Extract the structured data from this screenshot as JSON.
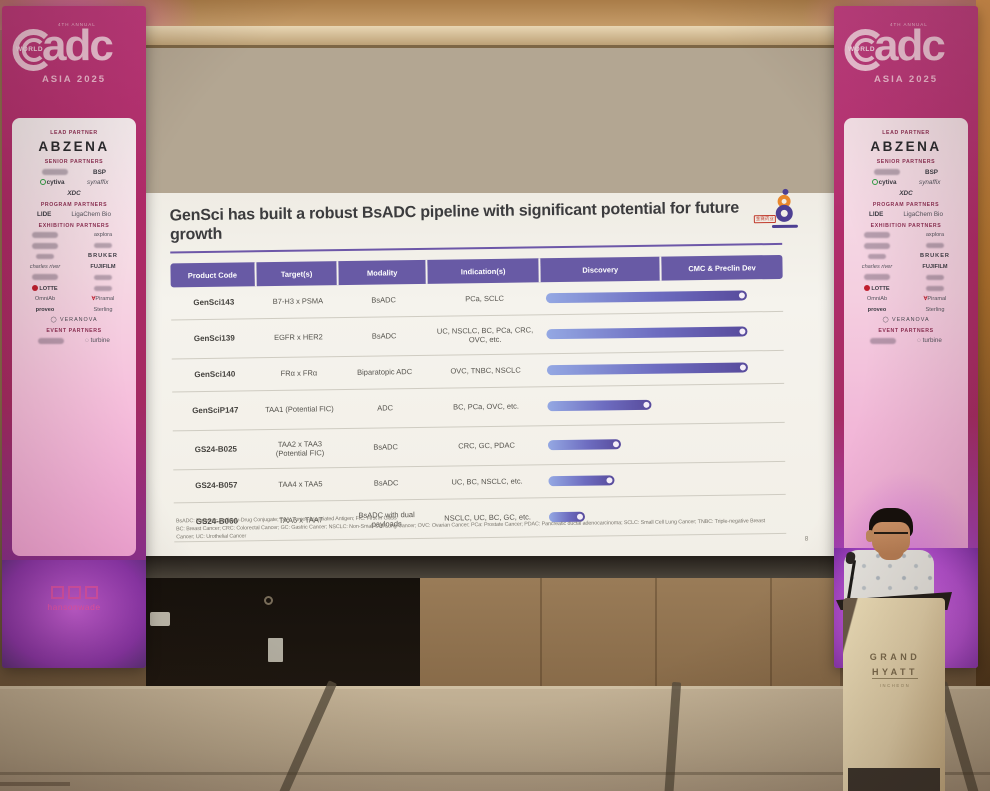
{
  "slide": {
    "title": "GenSci has built a robust BsADC pipeline with significant potential for future growth",
    "logo_cjk": "金赛药业",
    "page_number": "8",
    "table": {
      "headers": [
        "Product Code",
        "Target(s)",
        "Modality",
        "Indication(s)",
        "Discovery",
        "CMC & Preclin Dev"
      ],
      "rows": [
        {
          "product": "GenSci143",
          "target": "B7-H3 x PSMA",
          "modality": "BsADC",
          "indication": "PCa, SCLC",
          "progress_pct": 85
        },
        {
          "product": "GenSci139",
          "target": "EGFR x HER2",
          "modality": "BsADC",
          "indication": "UC, NSCLC, BC, PCa, CRC, OVC, etc.",
          "progress_pct": 85
        },
        {
          "product": "GenSci140",
          "target": "FRα x FRα",
          "modality": "Biparatopic ADC",
          "indication": "OVC, TNBC, NSCLC",
          "progress_pct": 85
        },
        {
          "product": "GenSciP147",
          "target": "TAA1 (Potential FIC)",
          "modality": "ADC",
          "indication": "BC, PCa, OVC, etc.",
          "progress_pct": 44
        },
        {
          "product": "GS24-B025",
          "target": "TAA2 x TAA3 (Potential FIC)",
          "modality": "BsADC",
          "indication": "CRC, GC, PDAC",
          "progress_pct": 31
        },
        {
          "product": "GS24-B057",
          "target": "TAA4 x TAA5",
          "modality": "BsADC",
          "indication": "UC, BC, NSCLC, etc.",
          "progress_pct": 28
        },
        {
          "product": "GS24-B060",
          "target": "TAA6 x TAA7",
          "modality": "BsADC with dual payloads",
          "indication": "NSCLC, UC, BC, GC, etc.",
          "progress_pct": 15
        }
      ]
    },
    "footnote_line1": "BsADC: Bispecific Antibody-Drug Conjugate; TAA: Tumor-Associated Antigen; FIC: First in Class",
    "footnote_line2": "BC: Breast Cancer; CRC: Colorectal Cancer; GC: Gastric Cancer; NSCLC: Non-Small Cell Lung Cancer; OVC: Ovarian Cancer; PCa: Prostate Cancer; PDAC: Pancreatic ductal adenocarcinoma; SCLC: Small Cell Lung Cancer; TNBC: Triple-negative Breast Cancer; UC: Urothelial Cancer"
  },
  "banner": {
    "annual": "4TH ANNUAL",
    "brand": "adc",
    "world": "WORLD",
    "asia": "ASIA 2025",
    "lead_label": "LEAD PARTNER",
    "lead_name": "ABZENA",
    "senior_label": "SENIOR PARTNERS",
    "senior": {
      "bsp": "BSP",
      "cytiva": "cytiva",
      "synaffix": "synaffix",
      "xdc": "XDC"
    },
    "program_label": "PROGRAM PARTNERS",
    "program": {
      "lide": "LIDE",
      "ligachem": "LigaChem Bio"
    },
    "exhibition_label": "EXHIBITION PARTNERS",
    "exhibition": {
      "axplora": "axplora",
      "bruker": "BRUKER",
      "charles_river": "charles river",
      "fujifilm": "FUJIFILM",
      "lotte": "LOTTE",
      "omniab": "OmniAb",
      "piramal": "Piramal",
      "proveo": "proveo",
      "sterling": "Sterling",
      "veranova": "VERANOVA"
    },
    "event_label": "EVENT PARTNERS",
    "event": {
      "turbine": "turbine"
    },
    "footer_logo": "hansonwade"
  },
  "podium": {
    "line1": "GRAND",
    "line2": "HYATT",
    "line3": "INCHEON"
  },
  "colors": {
    "accent_purple": "#685aa5",
    "bar_gradient_start": "#94a8e3",
    "bar_gradient_end": "#584b9c",
    "banner_magenta": "#b82b6f",
    "glow_purple": "#c75fd6",
    "gensci_orange": "#e8862c"
  }
}
